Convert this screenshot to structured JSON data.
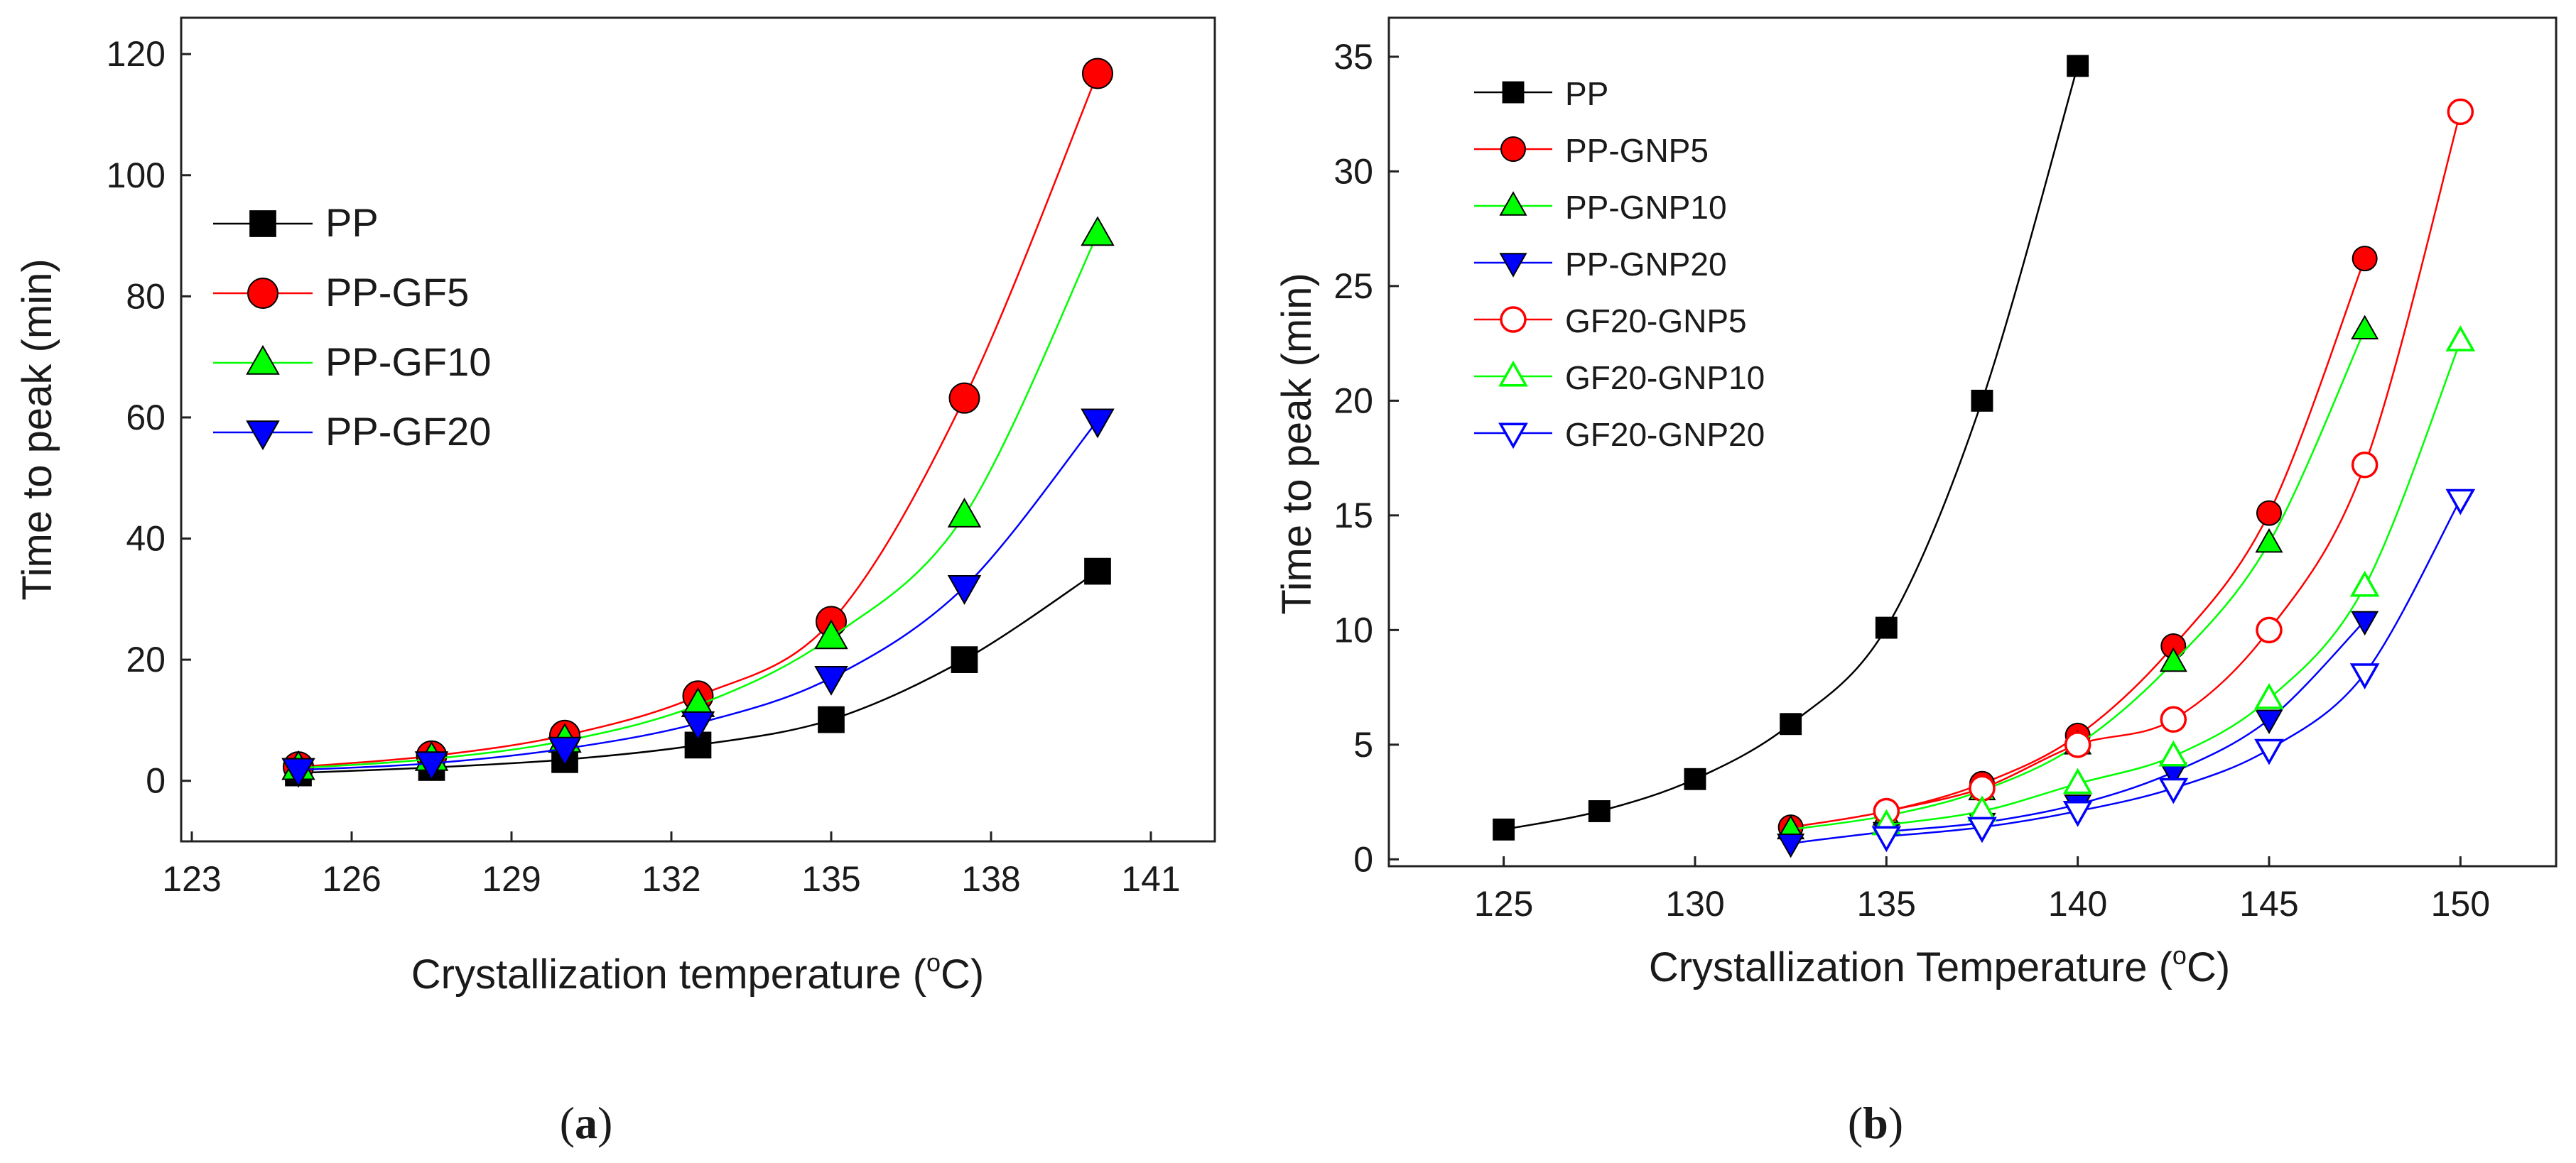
{
  "chart_data": [
    {
      "panel_label": "a",
      "type": "line",
      "xlabel_prefix": "Crystallization temperature (",
      "xlabel_sup": "o",
      "xlabel_suffix": "C)",
      "ylabel": "Time to peak (min)",
      "xlim": [
        122.8,
        142.2
      ],
      "ylim": [
        -10,
        126
      ],
      "x_ticks": [
        123,
        126,
        129,
        132,
        135,
        138,
        141
      ],
      "y_ticks": [
        0,
        20,
        40,
        60,
        80,
        100,
        120
      ],
      "grid": false,
      "legend_position": "upper-left",
      "series": [
        {
          "name": "PP",
          "color": "#000000",
          "marker": "square",
          "filled": true,
          "x": [
            125,
            127.5,
            130,
            132.5,
            135,
            137.5,
            140
          ],
          "y": [
            1.3,
            2.2,
            3.5,
            5.9,
            10.1,
            20.0,
            34.6
          ]
        },
        {
          "name": "PP-GF5",
          "color": "#ff0000",
          "marker": "circle",
          "filled": true,
          "x": [
            125,
            127.5,
            130,
            132.5,
            135,
            137.5,
            140
          ],
          "y": [
            2.3,
            4.1,
            7.5,
            14.0,
            26.3,
            63.2,
            116.8
          ]
        },
        {
          "name": "PP-GF10",
          "color": "#00ff00",
          "marker": "triangle-up",
          "filled": true,
          "x": [
            125,
            127.5,
            130,
            132.5,
            135,
            137.5,
            140
          ],
          "y": [
            2.1,
            3.6,
            6.6,
            12.5,
            23.7,
            43.8,
            90.3
          ]
        },
        {
          "name": "PP-GF20",
          "color": "#0000ff",
          "marker": "triangle-down",
          "filled": true,
          "x": [
            125,
            127.5,
            130,
            132.5,
            135,
            137.5,
            140
          ],
          "y": [
            1.8,
            2.9,
            5.3,
            9.5,
            17.0,
            32.0,
            59.5
          ]
        }
      ]
    },
    {
      "panel_label": "b",
      "type": "line",
      "xlabel_prefix": "Crystallization Temperature (",
      "xlabel_sup": "o",
      "xlabel_suffix": "C)",
      "ylabel": "Time to peak (min)",
      "xlim": [
        122,
        152.5
      ],
      "ylim": [
        -0.3,
        36.7
      ],
      "x_ticks": [
        125,
        130,
        135,
        140,
        145,
        150
      ],
      "y_ticks": [
        0,
        5,
        10,
        15,
        20,
        25,
        30,
        35
      ],
      "grid": false,
      "legend_position": "upper-left",
      "series": [
        {
          "name": "PP",
          "color": "#000000",
          "marker": "square",
          "filled": true,
          "x": [
            125,
            127.5,
            130,
            132.5,
            135,
            137.5,
            140
          ],
          "y": [
            1.3,
            2.1,
            3.5,
            5.9,
            10.1,
            20.0,
            34.6
          ]
        },
        {
          "name": "PP-GNP5",
          "color": "#ff0000",
          "marker": "circle",
          "filled": true,
          "x": [
            132.5,
            135,
            137.5,
            140,
            142.5,
            145,
            147.5
          ],
          "y": [
            1.4,
            2.1,
            3.3,
            5.4,
            9.3,
            15.1,
            26.2
          ]
        },
        {
          "name": "PP-GNP10",
          "color": "#00ff00",
          "marker": "triangle-up",
          "filled": true,
          "x": [
            132.5,
            135,
            137.5,
            140,
            142.5,
            145,
            147.5
          ],
          "y": [
            1.3,
            1.9,
            3.0,
            5.0,
            8.6,
            13.8,
            23.1
          ]
        },
        {
          "name": "PP-GNP20",
          "color": "#0000ff",
          "marker": "triangle-down",
          "filled": true,
          "x": [
            132.5,
            135,
            137.5,
            140,
            142.5,
            145,
            147.5
          ],
          "y": [
            0.7,
            1.2,
            1.6,
            2.4,
            3.8,
            6.1,
            10.4
          ]
        },
        {
          "name": "GF20-GNP5",
          "color": "#ff0000",
          "marker": "circle",
          "filled": false,
          "x": [
            135,
            137.5,
            140,
            142.5,
            145,
            147.5,
            150
          ],
          "y": [
            2.1,
            3.1,
            5.0,
            6.1,
            10.0,
            17.2,
            32.6
          ]
        },
        {
          "name": "GF20-GNP10",
          "color": "#00ff00",
          "marker": "triangle-up",
          "filled": false,
          "x": [
            135,
            137.5,
            140,
            142.5,
            145,
            147.5,
            150
          ],
          "y": [
            1.5,
            2.1,
            3.3,
            4.5,
            7.0,
            11.9,
            22.6
          ]
        },
        {
          "name": "GF20-GNP20",
          "color": "#0000ff",
          "marker": "triangle-down",
          "filled": false,
          "x": [
            135,
            137.5,
            140,
            142.5,
            145,
            147.5,
            150
          ],
          "y": [
            1.0,
            1.4,
            2.1,
            3.1,
            4.8,
            8.1,
            15.7
          ]
        }
      ]
    }
  ]
}
